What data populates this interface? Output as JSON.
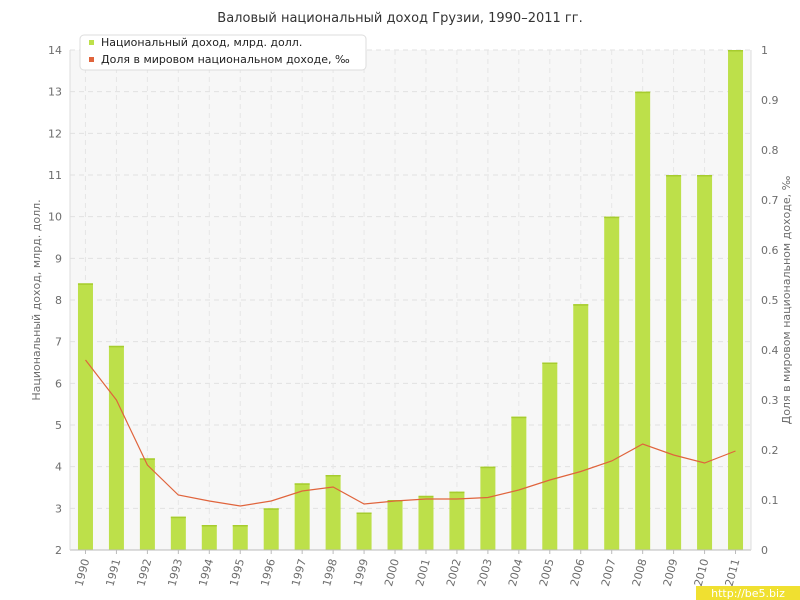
{
  "chart_data": {
    "type": "bar",
    "title": "Валовый национальный доход Грузии, 1990–2011 гг.",
    "ylabel": "Национальный доход, млрд. долл.",
    "y2label": "Доля в мировом национальном доходе, ‰",
    "ylim": [
      2,
      14
    ],
    "y2lim": [
      0,
      1
    ],
    "yticks": [
      2,
      3,
      4,
      5,
      6,
      7,
      8,
      9,
      10,
      11,
      12,
      13,
      14
    ],
    "y2ticks": [
      0,
      0.1,
      0.2,
      0.3,
      0.4,
      0.5,
      0.6,
      0.7,
      0.8,
      0.9,
      1
    ],
    "grid": true,
    "legend_position": "top-left",
    "categories": [
      "1990",
      "1991",
      "1992",
      "1993",
      "1994",
      "1995",
      "1996",
      "1997",
      "1998",
      "1999",
      "2000",
      "2001",
      "2002",
      "2003",
      "2004",
      "2005",
      "2006",
      "2007",
      "2008",
      "2009",
      "2010",
      "2011"
    ],
    "series": [
      {
        "name": "Национальный доход, млрд. долл.",
        "type": "bar",
        "axis": "left",
        "color": "#bde04a",
        "values": [
          8.4,
          6.9,
          4.2,
          2.8,
          2.6,
          2.6,
          3.0,
          3.6,
          3.8,
          2.9,
          3.2,
          3.3,
          3.4,
          4.0,
          5.2,
          6.5,
          7.9,
          10.0,
          13.0,
          11.0,
          11.0,
          14.0
        ]
      },
      {
        "name": "Доля в мировом национальном доходе, ‰",
        "type": "line",
        "axis": "right",
        "color": "#e0643c",
        "values": [
          0.38,
          0.3,
          0.17,
          0.11,
          0.098,
          0.088,
          0.098,
          0.118,
          0.126,
          0.092,
          0.098,
          0.102,
          0.102,
          0.105,
          0.12,
          0.14,
          0.157,
          0.178,
          0.212,
          0.19,
          0.174,
          0.198
        ]
      }
    ]
  },
  "watermark": "http://be5.biz"
}
